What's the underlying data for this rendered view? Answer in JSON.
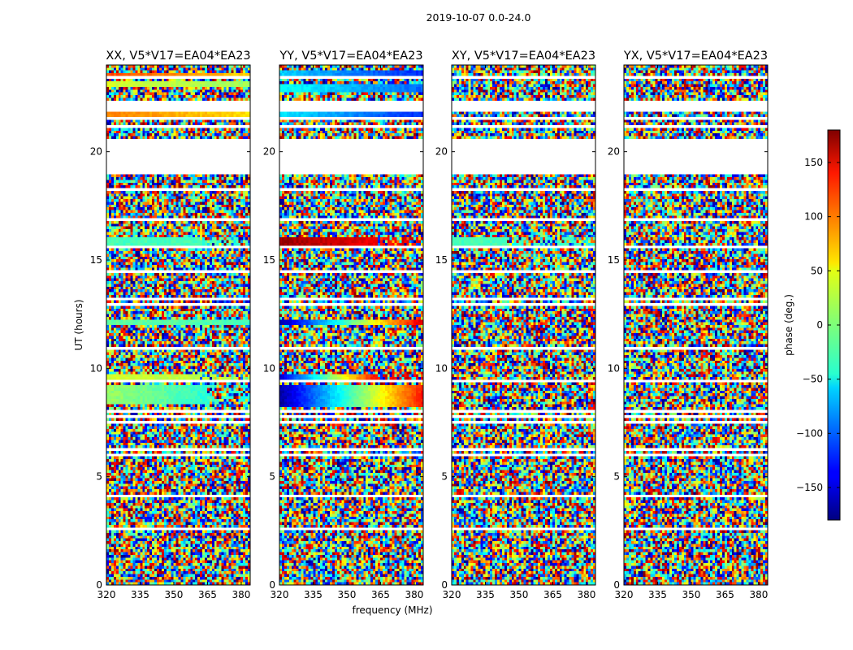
{
  "figure_title": "2019-10-07 0.0-24.0",
  "xlabel": "frequency (MHz)",
  "ylabel": "UT (hours)",
  "colorbar": {
    "label": "phase (deg.)",
    "ticks": [
      -150,
      -100,
      -50,
      0,
      50,
      100,
      150
    ],
    "range": [
      -180,
      180
    ],
    "colormap": "jet"
  },
  "chart_data": [
    {
      "type": "heatmap",
      "title": "XX, V5*V17=EA04*EA23",
      "x_ticks": [
        320,
        335,
        350,
        365,
        380
      ],
      "y_ticks": [
        0,
        5,
        10,
        15,
        20
      ],
      "xlim": [
        320,
        384
      ],
      "ylim": [
        0,
        24
      ],
      "coherent_bands": [
        {
          "t0": 23.35,
          "t1": 23.6,
          "phase_start": 110,
          "phase_end": 60,
          "break_f": 384
        },
        {
          "t0": 23.0,
          "t1": 23.3,
          "phase_start": 30,
          "phase_end": 10,
          "break_f": 384
        },
        {
          "t0": 22.0,
          "t1": 22.4,
          "phase_start": 60,
          "phase_end": 45,
          "break_f": 384
        },
        {
          "t0": 21.5,
          "t1": 21.9,
          "phase_start": 90,
          "phase_end": 55,
          "break_f": 384
        },
        {
          "t0": 15.65,
          "t1": 16.05,
          "phase_start": -20,
          "phase_end": -20,
          "break_f": 362
        },
        {
          "t0": 12.0,
          "t1": 12.3,
          "phase_start": -10,
          "phase_end": -20,
          "break_f": 384
        },
        {
          "t0": 9.4,
          "t1": 9.7,
          "phase_start": 30,
          "phase_end": 20,
          "break_f": 362
        },
        {
          "t0": 8.4,
          "t1": 9.2,
          "phase_start": 10,
          "phase_end": -30,
          "break_f": 365
        },
        {
          "t0": 5.9,
          "t1": 6.1,
          "phase_start": 40,
          "phase_end": 40,
          "break_f": 384
        }
      ]
    },
    {
      "type": "heatmap",
      "title": "YY, V5*V17=EA04*EA23",
      "x_ticks": [
        320,
        335,
        350,
        365,
        380
      ],
      "y_ticks": [
        0,
        5,
        10,
        15,
        20
      ],
      "xlim": [
        320,
        384
      ],
      "ylim": [
        0,
        24
      ],
      "coherent_bands": [
        {
          "t0": 23.4,
          "t1": 23.7,
          "phase_start": -60,
          "phase_end": -120,
          "break_f": 384
        },
        {
          "t0": 22.8,
          "t1": 23.1,
          "phase_start": -40,
          "phase_end": -100,
          "break_f": 384
        },
        {
          "t0": 22.0,
          "t1": 22.4,
          "phase_start": -40,
          "phase_end": -110,
          "break_f": 384
        },
        {
          "t0": 21.5,
          "t1": 21.9,
          "phase_start": -50,
          "phase_end": -120,
          "break_f": 384
        },
        {
          "t0": 15.65,
          "t1": 16.05,
          "phase_start": 170,
          "phase_end": 140,
          "break_f": 364
        },
        {
          "t0": 12.0,
          "t1": 12.3,
          "phase_start": -170,
          "phase_end": 150,
          "break_f": 384
        },
        {
          "t0": 9.4,
          "t1": 9.7,
          "phase_start": -150,
          "phase_end": 140,
          "break_f": 364
        },
        {
          "t0": 8.2,
          "t1": 9.2,
          "phase_start": -170,
          "phase_end": 130,
          "break_f": 384
        },
        {
          "t0": 5.9,
          "t1": 6.1,
          "phase_start": 170,
          "phase_end": 170,
          "break_f": 384
        }
      ]
    },
    {
      "type": "heatmap",
      "title": "XY, V5*V17=EA04*EA23",
      "x_ticks": [
        320,
        335,
        350,
        365,
        380
      ],
      "y_ticks": [
        0,
        5,
        10,
        15,
        20
      ],
      "xlim": [
        320,
        384
      ],
      "ylim": [
        0,
        24
      ],
      "coherent_bands": [
        {
          "t0": 15.65,
          "t1": 16.0,
          "phase_start": -20,
          "phase_end": -20,
          "break_f": 345
        }
      ]
    },
    {
      "type": "heatmap",
      "title": "YX, V5*V17=EA04*EA23",
      "x_ticks": [
        320,
        335,
        350,
        365,
        380
      ],
      "y_ticks": [
        0,
        5,
        10,
        15,
        20
      ],
      "xlim": [
        320,
        384
      ],
      "ylim": [
        0,
        24
      ],
      "coherent_bands": []
    }
  ]
}
